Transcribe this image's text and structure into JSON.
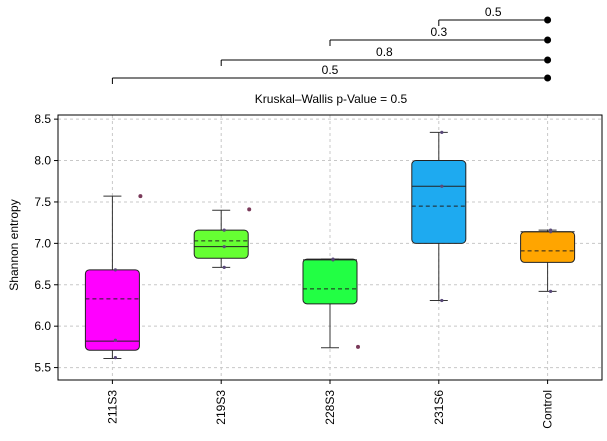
{
  "chart_data": {
    "type": "box",
    "title": "Kruskal–Wallis p-Value = 0.5",
    "xlabel": "",
    "ylabel": "Shannon entropy",
    "ylim": [
      5.35,
      8.55
    ],
    "yticks": [
      5.5,
      6.0,
      6.5,
      7.0,
      7.5,
      8.0,
      8.5
    ],
    "ytick_labels": [
      "5.5",
      "6.0",
      "6.5",
      "7.0",
      "7.5",
      "8.0",
      "8.5"
    ],
    "grid": true,
    "categories": [
      "211S3",
      "219S3",
      "228S3",
      "231S6",
      "Control"
    ],
    "boxes": [
      {
        "name": "211S3",
        "color": "#ff00ff",
        "q1": 5.71,
        "median": 5.82,
        "q3": 6.68,
        "mean": 6.33,
        "whisker_low": 5.61,
        "whisker_high": 7.57,
        "outliers": [
          7.57
        ],
        "points": [
          5.62,
          5.83,
          6.68
        ]
      },
      {
        "name": "219S3",
        "color": "#66ff33",
        "q1": 6.82,
        "median": 6.96,
        "q3": 7.16,
        "mean": 7.03,
        "whisker_low": 6.71,
        "whisker_high": 7.4,
        "outliers": [
          7.41
        ],
        "points": [
          6.71,
          6.96,
          7.16
        ]
      },
      {
        "name": "228S3",
        "color": "#22ff44",
        "q1": 6.27,
        "median": 6.8,
        "q3": 6.81,
        "mean": 6.45,
        "whisker_low": 5.74,
        "whisker_high": 6.81,
        "outliers": [
          5.75
        ],
        "points": [
          6.81,
          6.8
        ]
      },
      {
        "name": "231S6",
        "color": "#1eaaf0",
        "q1": 7.0,
        "median": 7.69,
        "q3": 8.0,
        "mean": 7.45,
        "whisker_low": 6.31,
        "whisker_high": 8.34,
        "outliers": [],
        "points": [
          6.31,
          7.69,
          8.34
        ]
      },
      {
        "name": "Control",
        "color": "#ffa500",
        "q1": 6.77,
        "median": 7.14,
        "q3": 7.14,
        "mean": 6.91,
        "whisker_low": 6.42,
        "whisker_high": 7.16,
        "outliers": [],
        "points": [
          6.42,
          7.14,
          7.16
        ]
      }
    ],
    "comparisons": [
      {
        "from": "231S6",
        "to": "Control",
        "p_label": "0.5"
      },
      {
        "from": "228S3",
        "to": "Control",
        "p_label": "0.3"
      },
      {
        "from": "219S3",
        "to": "Control",
        "p_label": "0.8"
      },
      {
        "from": "211S3",
        "to": "Control",
        "p_label": "0.5"
      }
    ]
  }
}
